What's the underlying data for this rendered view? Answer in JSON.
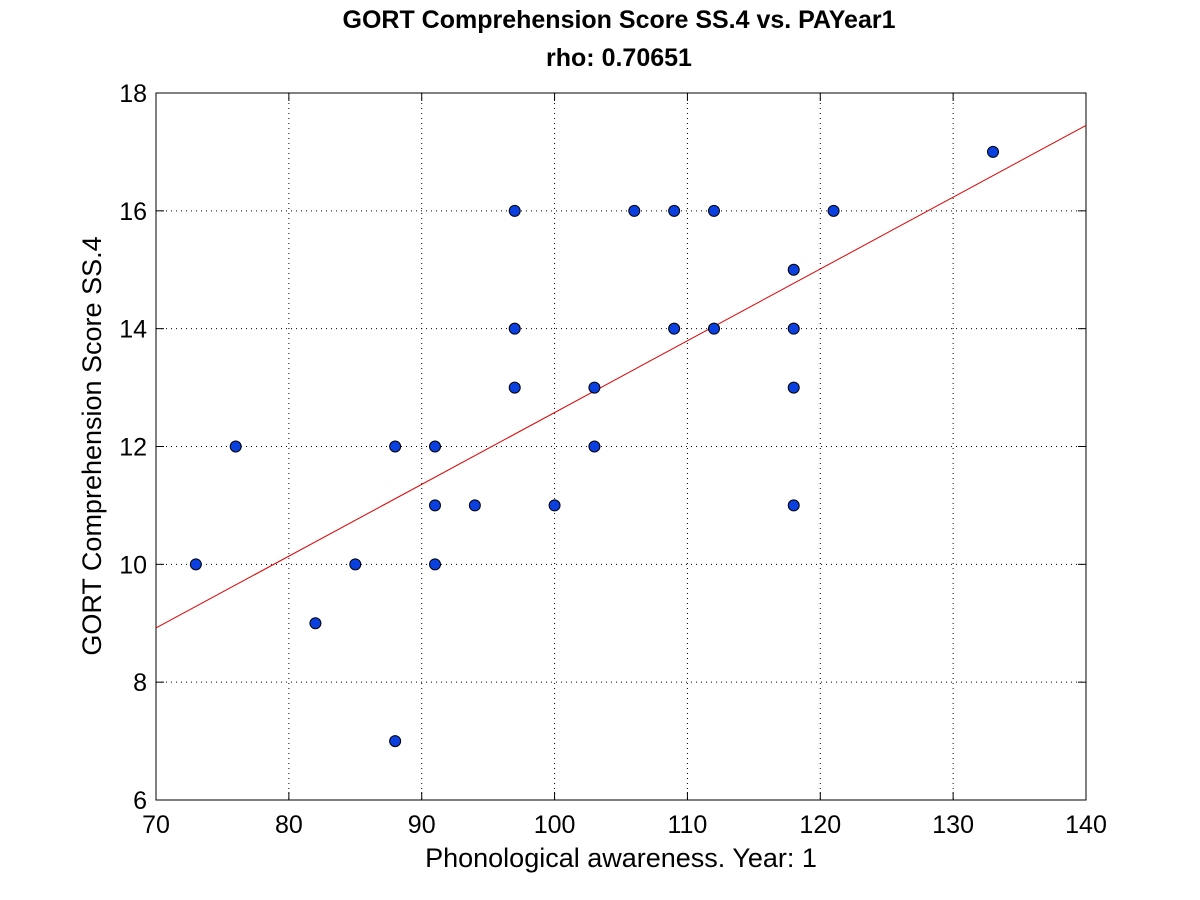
{
  "chart_data": {
    "type": "scatter",
    "title": "GORT Comprehension Score SS.4 vs. PAYear1",
    "subtitle": "rho: 0.70651",
    "xlabel": "Phonological awareness. Year: 1",
    "ylabel": "GORT Comprehension Score SS.4",
    "xlim": [
      70,
      140
    ],
    "ylim": [
      6,
      18
    ],
    "xticks": [
      70,
      80,
      90,
      100,
      110,
      120,
      130,
      140
    ],
    "yticks": [
      6,
      8,
      10,
      12,
      14,
      16,
      18
    ],
    "grid": true,
    "legend": "none",
    "colors": {
      "points": "#0a3fe0",
      "fit_line": "#e00000"
    },
    "points": [
      {
        "x": 73,
        "y": 10
      },
      {
        "x": 76,
        "y": 12
      },
      {
        "x": 82,
        "y": 9
      },
      {
        "x": 85,
        "y": 10
      },
      {
        "x": 88,
        "y": 12
      },
      {
        "x": 88,
        "y": 7
      },
      {
        "x": 91,
        "y": 12
      },
      {
        "x": 91,
        "y": 11
      },
      {
        "x": 91,
        "y": 10
      },
      {
        "x": 94,
        "y": 11
      },
      {
        "x": 97,
        "y": 16
      },
      {
        "x": 97,
        "y": 14
      },
      {
        "x": 97,
        "y": 13
      },
      {
        "x": 100,
        "y": 11
      },
      {
        "x": 103,
        "y": 13
      },
      {
        "x": 103,
        "y": 12
      },
      {
        "x": 106,
        "y": 16
      },
      {
        "x": 109,
        "y": 16
      },
      {
        "x": 109,
        "y": 14
      },
      {
        "x": 112,
        "y": 16
      },
      {
        "x": 112,
        "y": 14
      },
      {
        "x": 118,
        "y": 15
      },
      {
        "x": 118,
        "y": 14
      },
      {
        "x": 118,
        "y": 13
      },
      {
        "x": 118,
        "y": 11
      },
      {
        "x": 121,
        "y": 16
      },
      {
        "x": 133,
        "y": 17
      }
    ],
    "fit_line": {
      "x": [
        70,
        140
      ],
      "y": [
        8.92,
        17.45
      ]
    }
  }
}
